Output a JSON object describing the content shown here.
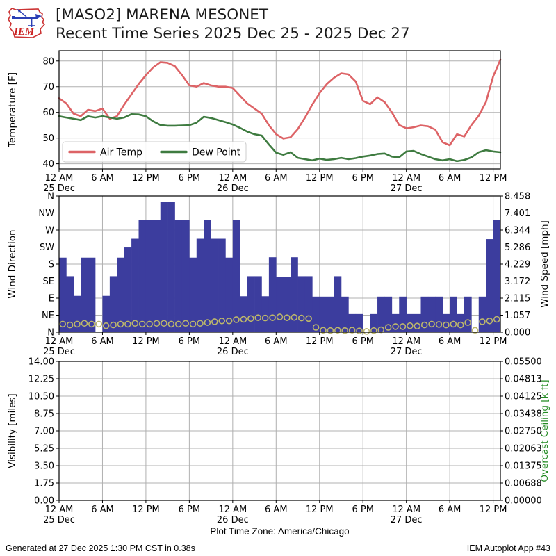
{
  "header": {
    "logo_text": "IEM",
    "title_line1": "[MASO2] MARENA MESONET",
    "title_line2": "Recent Time Series 2025 Dec 25 - 2025 Dec 27"
  },
  "footer": {
    "timezone": "Plot Time Zone: America/Chicago",
    "generated": "Generated at 27 Dec 2025 1:30 PM CST in 0.38s",
    "app": "IEM Autoplot App #43"
  },
  "x_axis": {
    "hours_span": 61,
    "tick_hours": [
      0,
      6,
      12,
      18,
      24,
      30,
      36,
      42,
      48,
      54,
      60
    ],
    "tick_labels": [
      "12 AM",
      "6 AM",
      "12 PM",
      "6 PM",
      "12 AM",
      "6 AM",
      "12 PM",
      "6 PM",
      "12 AM",
      "6 AM",
      "12 PM"
    ],
    "date_ticks": [
      {
        "hour": 0,
        "label": "25 Dec"
      },
      {
        "hour": 24,
        "label": "26 Dec"
      },
      {
        "hour": 48,
        "label": "27 Dec"
      }
    ]
  },
  "colors": {
    "grid": "#b0b0b0",
    "axis": "#000000",
    "air_temp": "#dd6366",
    "dew_point": "#3e7b40",
    "wind_bar": "#3c3d9e",
    "wind_marker": "#bdb76b",
    "overcast_label": "#228b22"
  },
  "chart_data": [
    {
      "type": "line",
      "panel": "temperature",
      "ylabel": "Temperature [F]",
      "yticks": [
        40,
        50,
        60,
        70,
        80
      ],
      "ylim": [
        38,
        84
      ],
      "legend_position": "lower left",
      "series": [
        {
          "name": "Air Temp",
          "color": "#dd6366",
          "values": [
            65.5,
            63.5,
            59.5,
            58.5,
            61,
            60.5,
            61.5,
            57.5,
            58.5,
            63,
            67,
            71,
            74.5,
            77.5,
            79.5,
            79.3,
            78,
            74.5,
            70.5,
            70,
            71.4,
            70.5,
            70,
            70,
            69.5,
            66.5,
            63.5,
            61.5,
            59.5,
            55,
            51.5,
            49.8,
            50.3,
            53.5,
            58,
            63,
            67.5,
            71,
            73.5,
            75.2,
            74.8,
            72,
            64.5,
            63.2,
            65.9,
            64,
            60,
            55.1,
            53.8,
            54.2,
            54.9,
            54.6,
            53.3,
            48.4,
            47.2,
            51.5,
            50.6,
            55.1,
            58.7,
            64,
            74,
            80.5
          ]
        },
        {
          "name": "Dew Point",
          "color": "#3e7b40",
          "values": [
            58.5,
            58,
            57.5,
            57,
            58.5,
            58,
            58.5,
            58,
            57.5,
            58,
            59.3,
            59.2,
            58.5,
            56.5,
            55.1,
            54.8,
            54.8,
            54.9,
            55,
            56,
            58.3,
            57.8,
            57,
            56.2,
            55.3,
            54,
            52.5,
            51.5,
            51,
            47.5,
            44.3,
            43.5,
            44.5,
            42.3,
            41.8,
            41.3,
            42,
            41.5,
            41.8,
            42.3,
            41.8,
            42.2,
            42.8,
            43.2,
            43.8,
            44,
            42.8,
            42.5,
            44.8,
            45,
            43.8,
            42.8,
            41.8,
            41.3,
            41.8,
            41,
            41.5,
            42.5,
            44.5,
            45.3,
            44.8,
            44.5
          ]
        }
      ]
    },
    {
      "type": "bar",
      "panel": "wind",
      "ylabel_left": "Wind Direction",
      "yticks_left": [
        "N",
        "NW",
        "W",
        "SW",
        "S",
        "SE",
        "E",
        "NE",
        "N"
      ],
      "ylabel_right": "Wind Speed [mph]",
      "yticks_right": [
        "8.458",
        "7.401",
        "6.344",
        "5.286",
        "4.229",
        "3.172",
        "2.115",
        "1.057",
        "0.000"
      ],
      "direction_max_deg": 360,
      "speed_max_mph": 8.458,
      "direction_deg": [
        197,
        148,
        96,
        197,
        197,
        0,
        96,
        148,
        197,
        224,
        247,
        296,
        296,
        296,
        345,
        345,
        296,
        296,
        197,
        247,
        296,
        247,
        247,
        197,
        296,
        95,
        148,
        148,
        95,
        198,
        146,
        146,
        198,
        148,
        148,
        94,
        94,
        94,
        148,
        94,
        48,
        48,
        0,
        48,
        94,
        94,
        48,
        94,
        48,
        48,
        94,
        94,
        94,
        48,
        94,
        48,
        94,
        0,
        94,
        246,
        296
      ],
      "speed_mph": [
        0.5,
        0.45,
        0.5,
        0.55,
        0.5,
        0.5,
        0.4,
        0.45,
        0.5,
        0.5,
        0.55,
        0.5,
        0.5,
        0.55,
        0.55,
        0.5,
        0.5,
        0.55,
        0.5,
        0.55,
        0.6,
        0.65,
        0.7,
        0.7,
        0.78,
        0.8,
        0.85,
        0.9,
        0.88,
        0.9,
        0.95,
        0.9,
        0.92,
        0.88,
        0.85,
        0.3,
        0.12,
        0.1,
        0.12,
        0.1,
        0.13,
        0.08,
        0.05,
        0.1,
        0.15,
        0.3,
        0.35,
        0.35,
        0.4,
        0.38,
        0.45,
        0.5,
        0.48,
        0.45,
        0.5,
        0.45,
        0.6,
        0.12,
        0.65,
        0.7,
        0.8
      ]
    },
    {
      "type": "empty",
      "panel": "visibility",
      "ylabel_left": "Visibility [miles]",
      "yticks_left": [
        "14.00",
        "12.25",
        "10.50",
        "8.75",
        "7.00",
        "5.25",
        "3.50",
        "1.75",
        "0.00"
      ],
      "ylabel_right": "Overcast Ceiling [k ft]",
      "yticks_right": [
        "0.05500",
        "0.04813",
        "0.04125",
        "0.03438",
        "0.02750",
        "0.02063",
        "0.01375",
        "0.00688",
        "0.00000"
      ]
    }
  ]
}
